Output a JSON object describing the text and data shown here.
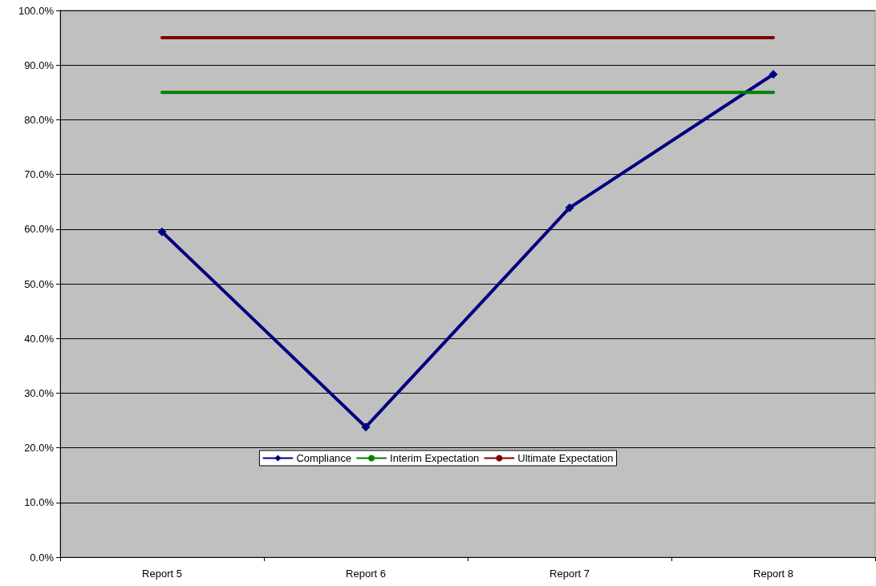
{
  "chart_data": {
    "type": "line",
    "categories": [
      "Report 5",
      "Report 6",
      "Report 7",
      "Report 8"
    ],
    "series": [
      {
        "name": "Compliance",
        "color": "#000080",
        "marker": "diamond",
        "values": [
          59.5,
          23.8,
          63.9,
          88.3
        ]
      },
      {
        "name": "Interim Expectation",
        "color": "#008000",
        "marker": "none",
        "values": [
          85,
          85,
          85,
          85
        ]
      },
      {
        "name": "Ultimate Expectation",
        "color": "#800000",
        "marker": "none",
        "values": [
          95,
          95,
          95,
          95
        ]
      }
    ],
    "ylim": [
      0,
      100
    ],
    "yticks": [
      {
        "value": 0,
        "label": "0.0%"
      },
      {
        "value": 10,
        "label": "10.0%"
      },
      {
        "value": 20,
        "label": "20.0%"
      },
      {
        "value": 30,
        "label": "30.0%"
      },
      {
        "value": 40,
        "label": "40.0%"
      },
      {
        "value": 50,
        "label": "50.0%"
      },
      {
        "value": 60,
        "label": "60.0%"
      },
      {
        "value": 70,
        "label": "70.0%"
      },
      {
        "value": 80,
        "label": "80.0%"
      },
      {
        "value": 90,
        "label": "90.0%"
      },
      {
        "value": 100,
        "label": "100.0%"
      }
    ],
    "grid": "y",
    "legend": "bottom",
    "line_style": "solid"
  }
}
